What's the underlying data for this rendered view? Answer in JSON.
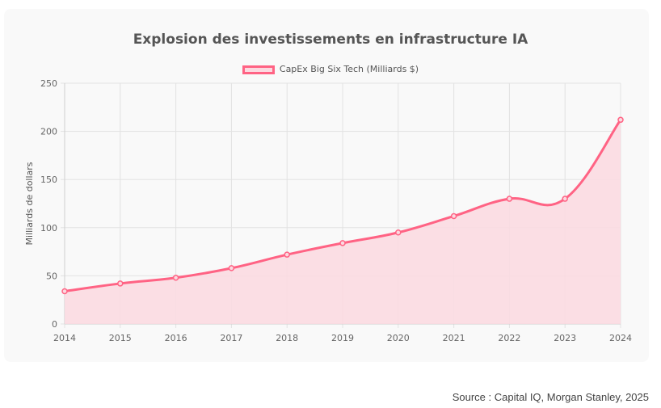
{
  "chart_data": {
    "type": "line",
    "title": "Explosion des investissements en infrastructure IA",
    "xlabel": "",
    "ylabel": "Milliards de dollars",
    "categories": [
      "2014",
      "2015",
      "2016",
      "2017",
      "2018",
      "2019",
      "2020",
      "2021",
      "2022",
      "2023",
      "2024"
    ],
    "series": [
      {
        "name": "CapEx Big Six Tech (Milliards $)",
        "values": [
          34,
          42,
          48,
          58,
          72,
          84,
          95,
          112,
          130,
          130,
          212
        ],
        "fill": true,
        "color": "#ff6384",
        "fill_color": "#fbd9e0"
      }
    ],
    "ylim": [
      0,
      250
    ],
    "yticks": [
      "0",
      "50",
      "100",
      "150",
      "200",
      "250"
    ],
    "grid": true,
    "legend_position": "top-center"
  },
  "footer": {
    "source": "Source : Capital IQ, Morgan Stanley, 2025"
  }
}
